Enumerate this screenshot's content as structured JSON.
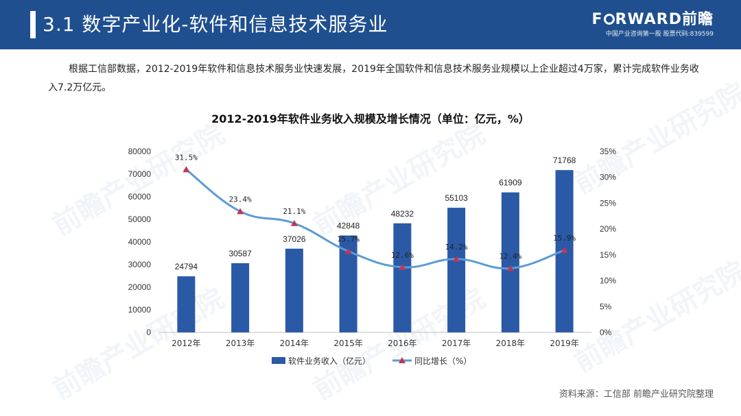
{
  "header": {
    "title": "3.1 数字产业化-软件和信息技术服务业",
    "logo_text_pre": "F",
    "logo_text_post": "RWARD前瞻",
    "logo_sub": "中国产业咨询第一股 股票代码:839599"
  },
  "intro": "根据工信部数据，2012-2019年软件和信息技术服务业快速发展，2019年全国软件和信息技术服务业规模以上企业超过4万家，累计完成软件业务收入7.2万亿元。",
  "source": "资料来源：工信部 前瞻产业研究院整理",
  "watermark_text": "前瞻产业研究院",
  "colors": {
    "header_bg": "#1f4f8f",
    "bar": "#2a59a6",
    "line": "#5b9bd5",
    "marker": "#c0355a"
  },
  "chart_data": {
    "type": "bar",
    "title": "2012-2019年软件业务收入规模及增长情况（单位：亿元，%）",
    "categories": [
      "2012年",
      "2013年",
      "2014年",
      "2015年",
      "2016年",
      "2017年",
      "2018年",
      "2019年"
    ],
    "series": [
      {
        "name": "软件业务收入（亿元）",
        "type": "bar",
        "axis": "left",
        "values": [
          24794,
          30587,
          37026,
          42848,
          48232,
          55103,
          61909,
          71768
        ]
      },
      {
        "name": "同比增长（%）",
        "type": "line",
        "axis": "right",
        "values": [
          31.5,
          23.4,
          21.1,
          15.7,
          12.6,
          14.2,
          12.4,
          15.9
        ]
      }
    ],
    "bar_labels": [
      "24794",
      "30587",
      "37026",
      "42848",
      "48232",
      "55103",
      "61909",
      "71768"
    ],
    "line_labels": [
      "31.5%",
      "23.4%",
      "21.1%",
      "15.7%",
      "12.6%",
      "14.2%",
      "12.4%",
      "15.9%"
    ],
    "ylim_left": [
      0,
      80000
    ],
    "yticks_left": [
      "0",
      "10000",
      "20000",
      "30000",
      "40000",
      "50000",
      "60000",
      "70000",
      "80000"
    ],
    "ylim_right": [
      0,
      35
    ],
    "yticks_right": [
      "0%",
      "5%",
      "10%",
      "15%",
      "20%",
      "25%",
      "30%",
      "35%"
    ],
    "legend": [
      "软件业务收入（亿元）",
      "同比增长（%）"
    ],
    "legend_position": "bottom"
  }
}
